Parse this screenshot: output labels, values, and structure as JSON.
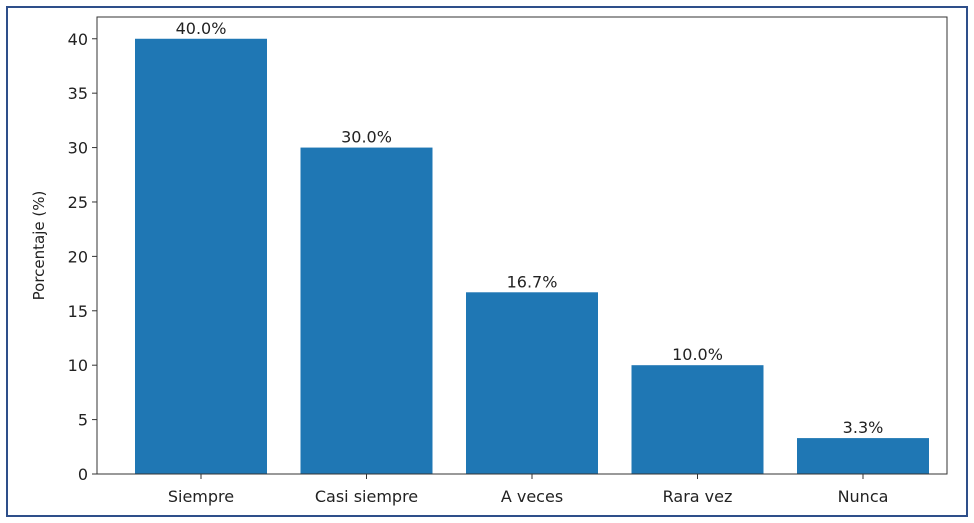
{
  "chart_data": {
    "type": "bar",
    "title": "",
    "xlabel": "",
    "ylabel": "Porcentaje (%)",
    "categories": [
      "Siempre",
      "Casi siempre",
      "A veces",
      "Rara vez",
      "Nunca"
    ],
    "values": [
      40.0,
      30.0,
      16.7,
      10.0,
      3.3
    ],
    "data_labels": [
      "40.0%",
      "30.0%",
      "16.7%",
      "10.0%",
      "3.3%"
    ],
    "ylim": [
      0,
      42
    ],
    "yticks": [
      0,
      5,
      10,
      15,
      20,
      25,
      30,
      35,
      40
    ],
    "grid": false,
    "legend": "none",
    "bar_color": "#1f77b4"
  }
}
